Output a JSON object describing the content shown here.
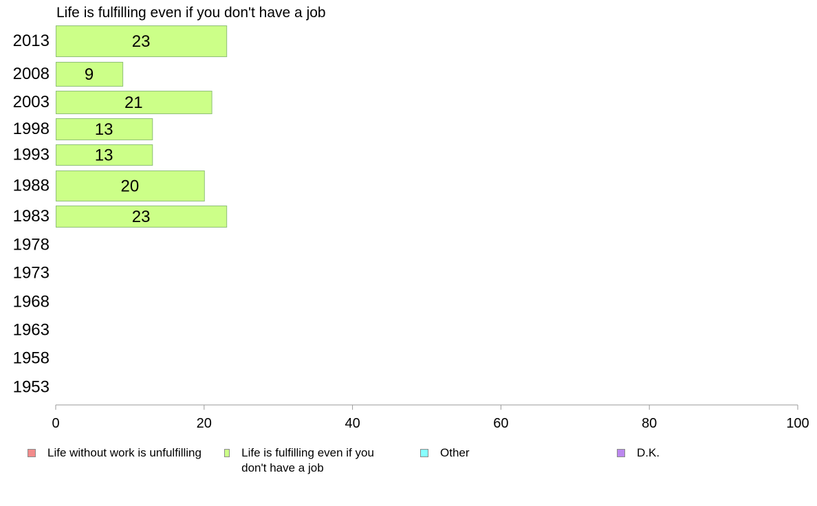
{
  "chart_data": {
    "type": "bar",
    "orientation": "horizontal",
    "title": "Life is fulfilling even if you don't have a job",
    "categories": [
      "2013",
      "2008",
      "2003",
      "1998",
      "1993",
      "1988",
      "1983",
      "1978",
      "1973",
      "1968",
      "1963",
      "1958",
      "1953"
    ],
    "series": [
      {
        "name": "Life is fulfilling even if you don't have a job",
        "values": [
          23,
          9,
          21,
          13,
          13,
          20,
          23,
          null,
          null,
          null,
          null,
          null,
          null
        ],
        "color": "#ccff88"
      }
    ],
    "data_labels": [
      "23",
      "9",
      "21",
      "13",
      "13",
      "20",
      "23",
      "",
      "",
      "",
      "",
      "",
      ""
    ],
    "xlim": [
      0,
      100
    ],
    "xticks": [
      "0",
      "20",
      "40",
      "60",
      "80",
      "100"
    ],
    "grid": false,
    "legend_position": "bottom",
    "legend": [
      {
        "label": "Life without work is unfulfilling",
        "color": "#f28b8b"
      },
      {
        "label": "Life is fulfilling even if you don't have a job",
        "color": "#ccff88"
      },
      {
        "label": "Other",
        "color": "#88ffff"
      },
      {
        "label": "D.K.",
        "color": "#bb88ee"
      }
    ]
  }
}
